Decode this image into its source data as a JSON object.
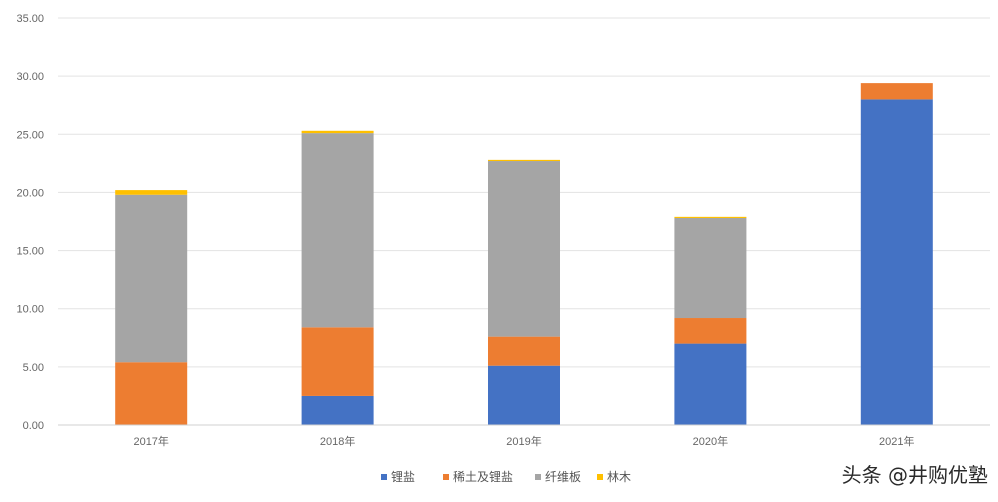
{
  "chart_data": {
    "type": "bar",
    "stacked": true,
    "categories": [
      "2017年",
      "2018年",
      "2019年",
      "2020年",
      "2021年"
    ],
    "series": [
      {
        "name": "锂盐",
        "color": "#4472C4",
        "values": [
          0,
          2.5,
          5.1,
          7.0,
          28.0
        ]
      },
      {
        "name": "稀土及锂盐",
        "color": "#ED7D31",
        "values": [
          5.4,
          5.9,
          2.5,
          2.2,
          1.4
        ]
      },
      {
        "name": "纤维板",
        "color": "#A5A5A5",
        "values": [
          14.4,
          16.7,
          15.1,
          8.6,
          0
        ]
      },
      {
        "name": "林木",
        "color": "#FFC000",
        "values": [
          0.4,
          0.2,
          0.1,
          0.1,
          0
        ]
      }
    ],
    "ylim": [
      0,
      35
    ],
    "yticks": [
      "0.00",
      "5.00",
      "10.00",
      "15.00",
      "20.00",
      "25.00",
      "30.00",
      "35.00"
    ],
    "grid": true,
    "legend_position": "bottom"
  },
  "watermark": "头条 @井购优塾"
}
